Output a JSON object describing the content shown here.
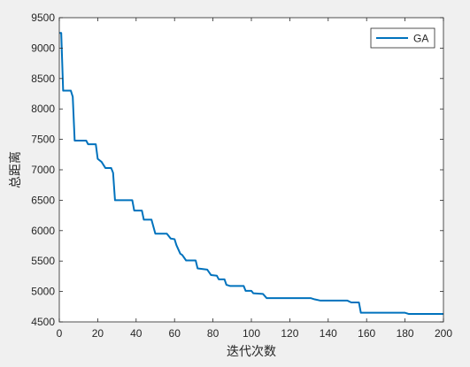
{
  "chart_data": {
    "type": "line",
    "title": "",
    "xlabel": "迭代次数",
    "ylabel": "总距离",
    "xlim": [
      0,
      200
    ],
    "ylim": [
      4500,
      9500
    ],
    "x_ticks": [
      0,
      20,
      40,
      60,
      80,
      100,
      120,
      140,
      160,
      180,
      200
    ],
    "y_ticks": [
      4500,
      5000,
      5500,
      6000,
      6500,
      7000,
      7500,
      8000,
      8500,
      9000,
      9500
    ],
    "grid": false,
    "legend_position": "top-right",
    "series": [
      {
        "name": "GA",
        "color": "#0072bd",
        "points": [
          [
            0,
            9250
          ],
          [
            1,
            9250
          ],
          [
            2,
            8300
          ],
          [
            6,
            8300
          ],
          [
            7,
            8200
          ],
          [
            8,
            7480
          ],
          [
            14,
            7480
          ],
          [
            15,
            7420
          ],
          [
            19,
            7420
          ],
          [
            20,
            7180
          ],
          [
            22,
            7130
          ],
          [
            24,
            7030
          ],
          [
            27,
            7030
          ],
          [
            28,
            6950
          ],
          [
            29,
            6500
          ],
          [
            38,
            6500
          ],
          [
            39,
            6330
          ],
          [
            43,
            6330
          ],
          [
            44,
            6180
          ],
          [
            48,
            6180
          ],
          [
            50,
            5950
          ],
          [
            56,
            5950
          ],
          [
            58,
            5870
          ],
          [
            60,
            5860
          ],
          [
            61,
            5760
          ],
          [
            63,
            5620
          ],
          [
            64,
            5600
          ],
          [
            66,
            5510
          ],
          [
            71,
            5510
          ],
          [
            72,
            5380
          ],
          [
            77,
            5360
          ],
          [
            79,
            5270
          ],
          [
            82,
            5260
          ],
          [
            83,
            5200
          ],
          [
            86,
            5200
          ],
          [
            87,
            5110
          ],
          [
            89,
            5090
          ],
          [
            96,
            5090
          ],
          [
            97,
            5010
          ],
          [
            100,
            5010
          ],
          [
            101,
            4970
          ],
          [
            106,
            4960
          ],
          [
            108,
            4890
          ],
          [
            131,
            4890
          ],
          [
            133,
            4870
          ],
          [
            136,
            4850
          ],
          [
            150,
            4850
          ],
          [
            152,
            4820
          ],
          [
            156,
            4820
          ],
          [
            157,
            4650
          ],
          [
            180,
            4650
          ],
          [
            182,
            4630
          ],
          [
            200,
            4630
          ]
        ]
      }
    ]
  }
}
